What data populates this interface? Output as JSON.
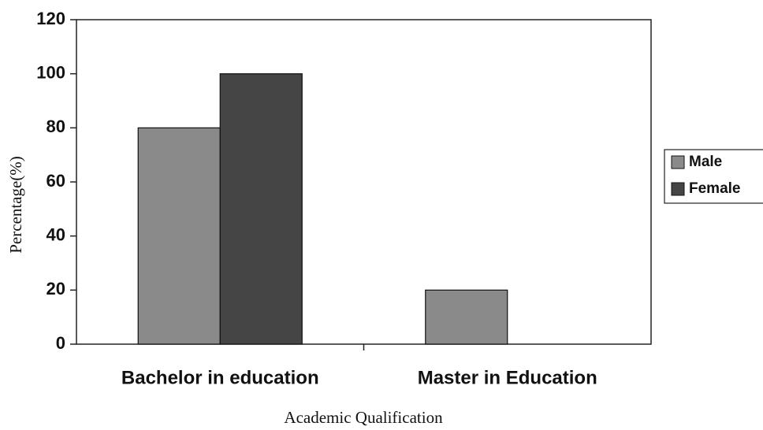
{
  "chart_data": {
    "type": "bar",
    "categories": [
      "Bachelor in education",
      "Master in Education"
    ],
    "series": [
      {
        "name": "Male",
        "color": "#8a8a8a",
        "values": [
          80,
          20
        ]
      },
      {
        "name": "Female",
        "color": "#454545",
        "values": [
          100,
          0
        ]
      }
    ],
    "xlabel": "Academic Qualification",
    "ylabel": "Percentage(%)",
    "ylim": [
      0,
      120
    ],
    "yticks": [
      0,
      20,
      40,
      60,
      80,
      100,
      120
    ],
    "legend": "right"
  }
}
